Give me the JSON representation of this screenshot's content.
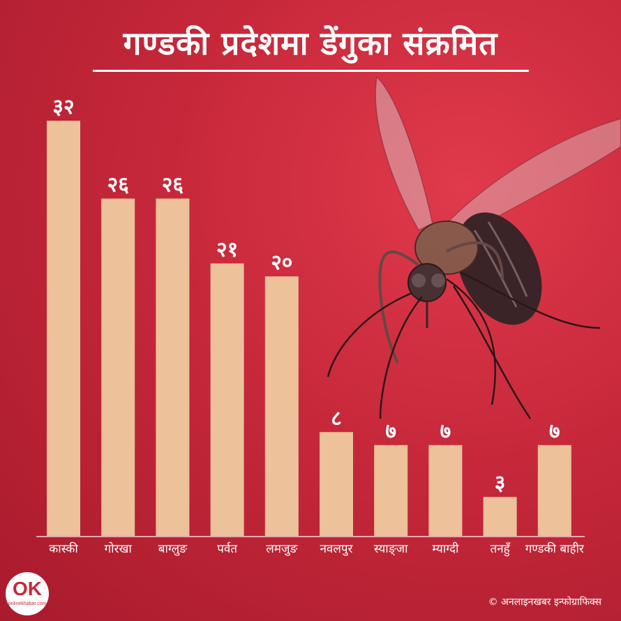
{
  "header": {
    "title": "गण्डकी प्रदेशमा डेंगुका संक्रमित"
  },
  "chart_data": {
    "type": "bar",
    "title": "गण्डकी प्रदेशमा डेंगुका संक्रमित",
    "categories": [
      "कास्की",
      "गोरखा",
      "बाग्लुङ",
      "पर्वत",
      "लमजुङ",
      "नवलपुर",
      "स्याङ्जा",
      "म्याग्दी",
      "तनहुँ",
      "गण्डकी बाहीर"
    ],
    "values": [
      32,
      26,
      26,
      21,
      20,
      8,
      7,
      7,
      3,
      7
    ],
    "value_labels": [
      "३२",
      "२६",
      "२६",
      "२१",
      "२०",
      "८",
      "७",
      "७",
      "३",
      "७"
    ],
    "ylim": [
      0,
      32
    ],
    "grid": false,
    "colors": {
      "bar": "#EDC199",
      "background": "#C6283A",
      "text": "#FFFFFF"
    }
  },
  "footer": {
    "credit": "© अनलाइनखबर इन्फोग्राफिक्स"
  },
  "logo": {
    "mark": "OK",
    "text": "onlinekhabar.com"
  },
  "icons": {
    "illustration": "mosquito-illustration"
  }
}
